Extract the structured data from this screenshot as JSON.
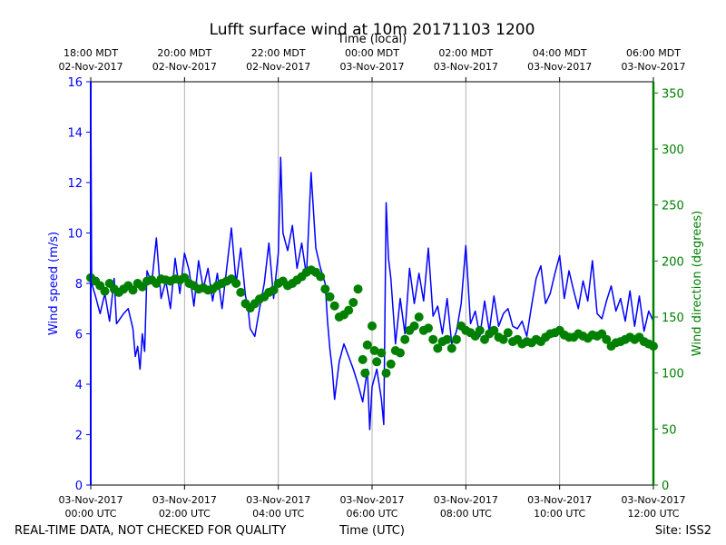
{
  "chart_data": {
    "type": "line",
    "title": "Lufft surface wind at 10m 20171103 1200",
    "top_axis_label": "Time (local)",
    "xlabel": "Time (UTC)",
    "ylabel_left": "Wind speed (m/s)",
    "ylabel_right": "Wind direction (degrees)",
    "xlim_hours_utc": [
      0,
      12
    ],
    "ylim_left": [
      0,
      16
    ],
    "ylim_right": [
      0,
      360
    ],
    "left_ticks": [
      0,
      2,
      4,
      6,
      8,
      10,
      12,
      14,
      16
    ],
    "right_ticks": [
      0,
      50,
      100,
      150,
      200,
      250,
      300,
      350
    ],
    "bottom_ticks": [
      {
        "hour": 0,
        "date": "03-Nov-2017",
        "time": "00:00 UTC"
      },
      {
        "hour": 2,
        "date": "03-Nov-2017",
        "time": "02:00 UTC"
      },
      {
        "hour": 4,
        "date": "03-Nov-2017",
        "time": "04:00 UTC"
      },
      {
        "hour": 6,
        "date": "03-Nov-2017",
        "time": "06:00 UTC"
      },
      {
        "hour": 8,
        "date": "03-Nov-2017",
        "time": "08:00 UTC"
      },
      {
        "hour": 10,
        "date": "03-Nov-2017",
        "time": "10:00 UTC"
      },
      {
        "hour": 12,
        "date": "03-Nov-2017",
        "time": "12:00 UTC"
      }
    ],
    "top_ticks": [
      {
        "hour": 0,
        "time": "18:00 MDT",
        "date": "02-Nov-2017"
      },
      {
        "hour": 2,
        "time": "20:00 MDT",
        "date": "02-Nov-2017"
      },
      {
        "hour": 4,
        "time": "22:00 MDT",
        "date": "02-Nov-2017"
      },
      {
        "hour": 6,
        "time": "00:00 MDT",
        "date": "03-Nov-2017"
      },
      {
        "hour": 8,
        "time": "02:00 MDT",
        "date": "03-Nov-2017"
      },
      {
        "hour": 10,
        "time": "04:00 MDT",
        "date": "03-Nov-2017"
      },
      {
        "hour": 12,
        "time": "06:00 MDT",
        "date": "03-Nov-2017"
      }
    ],
    "grid": "vertical",
    "series": [
      {
        "name": "Wind speed",
        "axis": "left",
        "color": "#0000ff",
        "style": "line",
        "points": [
          [
            0.0,
            16.0
          ],
          [
            0.02,
            8.0
          ],
          [
            0.1,
            7.5
          ],
          [
            0.2,
            6.8
          ],
          [
            0.3,
            7.6
          ],
          [
            0.4,
            6.5
          ],
          [
            0.5,
            8.2
          ],
          [
            0.55,
            6.4
          ],
          [
            0.7,
            6.8
          ],
          [
            0.8,
            7.0
          ],
          [
            0.9,
            6.2
          ],
          [
            0.95,
            5.1
          ],
          [
            1.0,
            5.5
          ],
          [
            1.05,
            4.6
          ],
          [
            1.1,
            6.0
          ],
          [
            1.15,
            5.3
          ],
          [
            1.2,
            8.5
          ],
          [
            1.3,
            8.0
          ],
          [
            1.4,
            9.8
          ],
          [
            1.5,
            7.4
          ],
          [
            1.6,
            8.1
          ],
          [
            1.7,
            7.0
          ],
          [
            1.8,
            9.0
          ],
          [
            1.9,
            7.6
          ],
          [
            2.0,
            9.2
          ],
          [
            2.1,
            8.5
          ],
          [
            2.2,
            7.1
          ],
          [
            2.3,
            8.9
          ],
          [
            2.4,
            7.8
          ],
          [
            2.5,
            8.6
          ],
          [
            2.6,
            7.3
          ],
          [
            2.7,
            8.4
          ],
          [
            2.8,
            7.0
          ],
          [
            2.9,
            8.6
          ],
          [
            3.0,
            10.2
          ],
          [
            3.1,
            8.0
          ],
          [
            3.2,
            9.4
          ],
          [
            3.3,
            7.5
          ],
          [
            3.35,
            7.1
          ],
          [
            3.4,
            6.2
          ],
          [
            3.5,
            5.9
          ],
          [
            3.6,
            7.0
          ],
          [
            3.7,
            8.0
          ],
          [
            3.8,
            9.6
          ],
          [
            3.9,
            7.4
          ],
          [
            4.0,
            9.2
          ],
          [
            4.05,
            13.0
          ],
          [
            4.1,
            10.0
          ],
          [
            4.2,
            9.3
          ],
          [
            4.3,
            10.3
          ],
          [
            4.4,
            8.6
          ],
          [
            4.5,
            9.6
          ],
          [
            4.6,
            8.3
          ],
          [
            4.7,
            12.4
          ],
          [
            4.8,
            9.4
          ],
          [
            4.9,
            8.6
          ],
          [
            5.0,
            8.0
          ],
          [
            5.05,
            6.5
          ],
          [
            5.1,
            5.4
          ],
          [
            5.15,
            4.6
          ],
          [
            5.2,
            3.4
          ],
          [
            5.3,
            4.9
          ],
          [
            5.4,
            5.6
          ],
          [
            5.5,
            5.1
          ],
          [
            5.6,
            4.6
          ],
          [
            5.7,
            4.0
          ],
          [
            5.8,
            3.3
          ],
          [
            5.9,
            4.6
          ],
          [
            5.95,
            2.2
          ],
          [
            6.0,
            3.9
          ],
          [
            6.1,
            4.6
          ],
          [
            6.2,
            3.4
          ],
          [
            6.25,
            2.4
          ],
          [
            6.3,
            11.2
          ],
          [
            6.35,
            9.0
          ],
          [
            6.4,
            8.2
          ],
          [
            6.5,
            5.6
          ],
          [
            6.6,
            7.4
          ],
          [
            6.7,
            6.0
          ],
          [
            6.8,
            8.6
          ],
          [
            6.9,
            7.2
          ],
          [
            7.0,
            8.4
          ],
          [
            7.1,
            7.3
          ],
          [
            7.2,
            9.4
          ],
          [
            7.3,
            6.7
          ],
          [
            7.4,
            7.1
          ],
          [
            7.5,
            6.0
          ],
          [
            7.6,
            7.4
          ],
          [
            7.7,
            5.6
          ],
          [
            7.8,
            6.1
          ],
          [
            7.9,
            7.2
          ],
          [
            8.0,
            9.5
          ],
          [
            8.1,
            6.4
          ],
          [
            8.2,
            6.9
          ],
          [
            8.3,
            5.9
          ],
          [
            8.4,
            7.3
          ],
          [
            8.5,
            6.1
          ],
          [
            8.6,
            7.5
          ],
          [
            8.7,
            6.3
          ],
          [
            8.8,
            6.8
          ],
          [
            8.9,
            7.0
          ],
          [
            9.0,
            6.3
          ],
          [
            9.1,
            6.2
          ],
          [
            9.2,
            6.5
          ],
          [
            9.3,
            5.9
          ],
          [
            9.4,
            7.1
          ],
          [
            9.5,
            8.2
          ],
          [
            9.6,
            8.7
          ],
          [
            9.7,
            7.2
          ],
          [
            9.8,
            7.6
          ],
          [
            9.9,
            8.4
          ],
          [
            10.0,
            9.1
          ],
          [
            10.1,
            7.4
          ],
          [
            10.2,
            8.5
          ],
          [
            10.3,
            7.7
          ],
          [
            10.4,
            7.0
          ],
          [
            10.5,
            8.1
          ],
          [
            10.6,
            7.3
          ],
          [
            10.7,
            8.9
          ],
          [
            10.8,
            6.8
          ],
          [
            10.9,
            6.6
          ],
          [
            11.0,
            7.3
          ],
          [
            11.1,
            7.9
          ],
          [
            11.2,
            6.9
          ],
          [
            11.3,
            7.4
          ],
          [
            11.4,
            6.5
          ],
          [
            11.5,
            7.7
          ],
          [
            11.6,
            6.3
          ],
          [
            11.7,
            7.5
          ],
          [
            11.8,
            6.1
          ],
          [
            11.9,
            6.9
          ],
          [
            12.0,
            6.5
          ]
        ]
      },
      {
        "name": "Wind direction",
        "axis": "right",
        "color": "#008000",
        "style": "markers",
        "points": [
          [
            0.0,
            185
          ],
          [
            0.1,
            182
          ],
          [
            0.2,
            178
          ],
          [
            0.3,
            173
          ],
          [
            0.4,
            180
          ],
          [
            0.5,
            175
          ],
          [
            0.6,
            172
          ],
          [
            0.7,
            175
          ],
          [
            0.8,
            178
          ],
          [
            0.9,
            174
          ],
          [
            1.0,
            180
          ],
          [
            1.1,
            177
          ],
          [
            1.2,
            182
          ],
          [
            1.3,
            183
          ],
          [
            1.4,
            180
          ],
          [
            1.5,
            184
          ],
          [
            1.6,
            183
          ],
          [
            1.7,
            182
          ],
          [
            1.8,
            184
          ],
          [
            1.9,
            183
          ],
          [
            2.0,
            185
          ],
          [
            2.1,
            180
          ],
          [
            2.2,
            178
          ],
          [
            2.3,
            175
          ],
          [
            2.4,
            176
          ],
          [
            2.5,
            174
          ],
          [
            2.6,
            175
          ],
          [
            2.7,
            178
          ],
          [
            2.8,
            180
          ],
          [
            2.9,
            182
          ],
          [
            3.0,
            184
          ],
          [
            3.1,
            180
          ],
          [
            3.2,
            172
          ],
          [
            3.3,
            162
          ],
          [
            3.4,
            158
          ],
          [
            3.5,
            162
          ],
          [
            3.6,
            166
          ],
          [
            3.7,
            168
          ],
          [
            3.8,
            172
          ],
          [
            3.9,
            174
          ],
          [
            4.0,
            180
          ],
          [
            4.1,
            182
          ],
          [
            4.2,
            178
          ],
          [
            4.3,
            180
          ],
          [
            4.4,
            183
          ],
          [
            4.5,
            186
          ],
          [
            4.6,
            190
          ],
          [
            4.7,
            192
          ],
          [
            4.8,
            190
          ],
          [
            4.9,
            186
          ],
          [
            5.0,
            175
          ],
          [
            5.1,
            168
          ],
          [
            5.2,
            160
          ],
          [
            5.3,
            150
          ],
          [
            5.4,
            152
          ],
          [
            5.5,
            156
          ],
          [
            5.6,
            163
          ],
          [
            5.7,
            175
          ],
          [
            5.8,
            112
          ],
          [
            5.85,
            100
          ],
          [
            5.9,
            125
          ],
          [
            6.0,
            142
          ],
          [
            6.05,
            120
          ],
          [
            6.1,
            110
          ],
          [
            6.2,
            118
          ],
          [
            6.3,
            100
          ],
          [
            6.4,
            108
          ],
          [
            6.5,
            120
          ],
          [
            6.6,
            118
          ],
          [
            6.7,
            130
          ],
          [
            6.8,
            138
          ],
          [
            6.9,
            142
          ],
          [
            7.0,
            150
          ],
          [
            7.1,
            138
          ],
          [
            7.2,
            140
          ],
          [
            7.3,
            130
          ],
          [
            7.4,
            122
          ],
          [
            7.5,
            128
          ],
          [
            7.6,
            130
          ],
          [
            7.7,
            122
          ],
          [
            7.8,
            130
          ],
          [
            7.9,
            142
          ],
          [
            8.0,
            138
          ],
          [
            8.1,
            136
          ],
          [
            8.2,
            133
          ],
          [
            8.3,
            138
          ],
          [
            8.4,
            130
          ],
          [
            8.5,
            135
          ],
          [
            8.6,
            138
          ],
          [
            8.7,
            132
          ],
          [
            8.8,
            130
          ],
          [
            8.9,
            136
          ],
          [
            9.0,
            128
          ],
          [
            9.1,
            130
          ],
          [
            9.2,
            126
          ],
          [
            9.3,
            128
          ],
          [
            9.4,
            127
          ],
          [
            9.5,
            130
          ],
          [
            9.6,
            128
          ],
          [
            9.7,
            132
          ],
          [
            9.8,
            135
          ],
          [
            9.9,
            136
          ],
          [
            10.0,
            138
          ],
          [
            10.1,
            134
          ],
          [
            10.2,
            132
          ],
          [
            10.3,
            132
          ],
          [
            10.4,
            135
          ],
          [
            10.5,
            133
          ],
          [
            10.6,
            131
          ],
          [
            10.7,
            134
          ],
          [
            10.8,
            133
          ],
          [
            10.9,
            135
          ],
          [
            11.0,
            130
          ],
          [
            11.1,
            124
          ],
          [
            11.2,
            127
          ],
          [
            11.3,
            128
          ],
          [
            11.4,
            130
          ],
          [
            11.5,
            132
          ],
          [
            11.6,
            130
          ],
          [
            11.7,
            132
          ],
          [
            11.8,
            128
          ],
          [
            11.9,
            126
          ],
          [
            12.0,
            124
          ]
        ]
      }
    ]
  },
  "footer": {
    "left": "REAL-TIME DATA, NOT CHECKED FOR QUALITY",
    "center": "Time (UTC)",
    "right": "Site: ISS2"
  }
}
